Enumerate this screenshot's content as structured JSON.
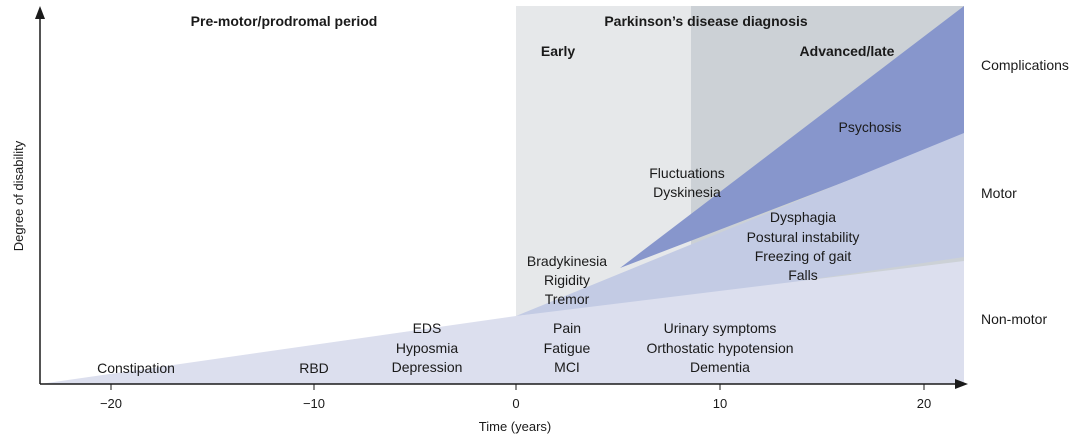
{
  "headers": {
    "premotor": "Pre-motor/prodromal period",
    "diagnosis": "Parkinson’s disease diagnosis",
    "early": "Early",
    "advanced": "Advanced/late"
  },
  "axes": {
    "xlabel": "Time (years)",
    "ylabel": "Degree of disability",
    "xticks": [
      "−20",
      "−10",
      "0",
      "10",
      "20"
    ]
  },
  "categories": {
    "complications": "Complications",
    "motor": "Motor",
    "nonmotor": "Non-motor"
  },
  "symptoms": {
    "constipation": "Constipation",
    "rbd": "RBD",
    "eds_group": [
      "EDS",
      "Hyposmia",
      "Depression"
    ],
    "pain_group": [
      "Pain",
      "Fatigue",
      "MCI"
    ],
    "urinary_group": [
      "Urinary symptoms",
      "Orthostatic hypotension",
      "Dementia"
    ],
    "brady_group": [
      "Bradykinesia",
      "Rigidity",
      "Tremor"
    ],
    "dysphagia_group": [
      "Dysphagia",
      "Postural instability",
      "Freezing of gait",
      "Falls"
    ],
    "fluct_group": [
      "Fluctuations",
      "Dyskinesia"
    ],
    "psychosis": "Psychosis"
  },
  "colors": {
    "early_band": "#e6e8ea",
    "advanced_band": "#ccd1d6",
    "nonmotor_fill": "#dcdfee",
    "motor_fill": "#c3cbe4",
    "complications_fill": "#8796cc",
    "axis": "#1a1a1a"
  }
}
